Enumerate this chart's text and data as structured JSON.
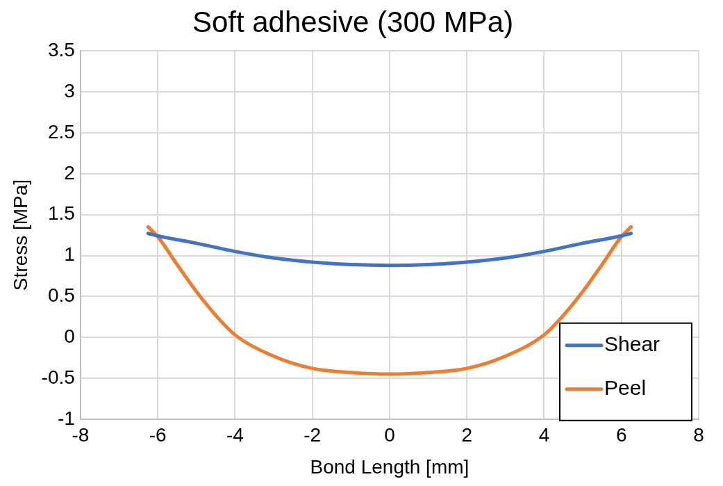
{
  "chart_data": {
    "type": "line",
    "title": "Soft adhesive (300 MPa)",
    "xlabel": "Bond Length [mm]",
    "ylabel": "Stress [MPa]",
    "xlim": [
      -8,
      8
    ],
    "xticks": [
      -8,
      -6,
      -4,
      -2,
      0,
      2,
      4,
      6,
      8
    ],
    "ylim": [
      -1,
      3.5
    ],
    "yticks": [
      -1,
      -0.5,
      0,
      0.5,
      1,
      1.5,
      2,
      2.5,
      3,
      3.5
    ],
    "grid": true,
    "legend": "bottom right",
    "marker": "none",
    "line_style": "solid",
    "series": [
      {
        "name": "Shear",
        "color": "#4472c4",
        "x": [
          -6.25,
          -6,
          -5,
          -4,
          -3,
          -2,
          -1,
          0,
          1,
          2,
          3,
          4,
          5,
          6,
          6.25
        ],
        "values": [
          1.27,
          1.24,
          1.15,
          1.05,
          0.97,
          0.92,
          0.89,
          0.88,
          0.89,
          0.92,
          0.97,
          1.05,
          1.15,
          1.24,
          1.27
        ]
      },
      {
        "name": "Peel",
        "color": "#ed7d31",
        "x": [
          -6.25,
          -6,
          -5.5,
          -5,
          -4.5,
          -4,
          -3,
          -2,
          -1,
          0,
          1,
          2,
          3,
          4,
          4.5,
          5,
          5.5,
          6,
          6.25
        ],
        "values": [
          1.35,
          1.23,
          0.89,
          0.56,
          0.27,
          0.03,
          -0.23,
          -0.38,
          -0.43,
          -0.45,
          -0.43,
          -0.38,
          -0.23,
          0.03,
          0.27,
          0.56,
          0.89,
          1.23,
          1.35
        ]
      }
    ]
  }
}
